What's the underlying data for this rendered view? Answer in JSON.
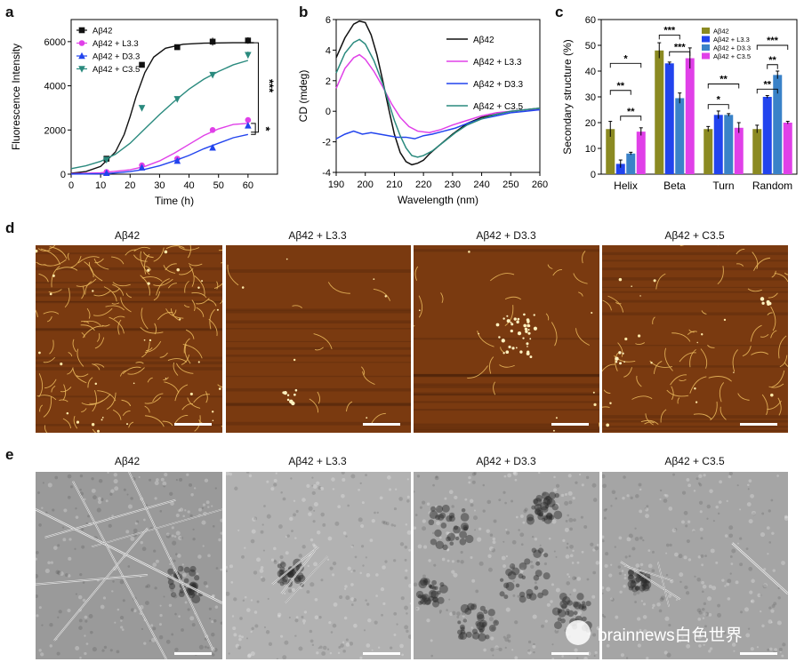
{
  "panels": {
    "a": "a",
    "b": "b",
    "c": "c",
    "d": "d",
    "e": "e"
  },
  "sample_labels": [
    "Aβ42",
    "Aβ42 + L3.3",
    "Aβ42 + D3.3",
    "Aβ42 + C3.5"
  ],
  "colors": {
    "ab42": "#111111",
    "l33": "#e040e8",
    "d33": "#2244ee",
    "c35": "#2a8a7e",
    "olive": "#8b8a22",
    "afm": "#7a3a10"
  },
  "watermark": "brainnews白色世界",
  "chart_data": [
    {
      "id": "a",
      "type": "scatter",
      "xlabel": "Time (h)",
      "ylabel": "Fluorescence Intensity",
      "xlim": [
        0,
        70
      ],
      "ylim": [
        0,
        7000
      ],
      "xticks": [
        0,
        10,
        20,
        30,
        40,
        50,
        60
      ],
      "yticks": [
        0,
        2000,
        4000,
        6000
      ],
      "series": [
        {
          "name": "Aβ42",
          "color": "#111111",
          "marker": "square",
          "x": [
            12,
            24,
            36,
            48,
            60
          ],
          "y": [
            700,
            4950,
            5750,
            6000,
            6050
          ],
          "err": [
            0,
            80,
            120,
            180,
            150
          ],
          "fit": [
            [
              0,
              40
            ],
            [
              5,
              120
            ],
            [
              10,
              350
            ],
            [
              15,
              1000
            ],
            [
              18,
              1800
            ],
            [
              20,
              2600
            ],
            [
              22,
              3500
            ],
            [
              25,
              4600
            ],
            [
              28,
              5300
            ],
            [
              32,
              5700
            ],
            [
              38,
              5880
            ],
            [
              45,
              5930
            ],
            [
              55,
              5950
            ],
            [
              62,
              5950
            ]
          ]
        },
        {
          "name": "Aβ42 + L3.3",
          "color": "#e040e8",
          "marker": "circle",
          "x": [
            12,
            24,
            36,
            48,
            60
          ],
          "y": [
            100,
            400,
            700,
            2000,
            2450
          ],
          "err": [
            0,
            60,
            80,
            100,
            100
          ],
          "fit": [
            [
              0,
              20
            ],
            [
              10,
              60
            ],
            [
              20,
              200
            ],
            [
              25,
              350
            ],
            [
              30,
              600
            ],
            [
              35,
              950
            ],
            [
              40,
              1350
            ],
            [
              45,
              1750
            ],
            [
              50,
              2050
            ],
            [
              55,
              2250
            ],
            [
              60,
              2300
            ]
          ]
        },
        {
          "name": "Aβ42 + D3.3",
          "color": "#2244ee",
          "marker": "triangle-up",
          "x": [
            12,
            24,
            36,
            48,
            60
          ],
          "y": [
            50,
            300,
            600,
            1200,
            2200
          ],
          "err": [
            0,
            40,
            60,
            80,
            100
          ],
          "fit": [
            [
              0,
              5
            ],
            [
              12,
              20
            ],
            [
              20,
              120
            ],
            [
              25,
              220
            ],
            [
              30,
              380
            ],
            [
              35,
              600
            ],
            [
              40,
              850
            ],
            [
              45,
              1150
            ],
            [
              50,
              1400
            ],
            [
              55,
              1650
            ],
            [
              60,
              1800
            ]
          ]
        },
        {
          "name": "Aβ42 + C3.5",
          "color": "#2a8a7e",
          "marker": "triangle-down",
          "x": [
            12,
            24,
            36,
            48,
            60
          ],
          "y": [
            650,
            3000,
            3400,
            4500,
            5400
          ],
          "err": [
            0,
            80,
            100,
            120,
            150
          ],
          "fit": [
            [
              0,
              250
            ],
            [
              5,
              380
            ],
            [
              10,
              580
            ],
            [
              15,
              900
            ],
            [
              20,
              1400
            ],
            [
              25,
              2050
            ],
            [
              30,
              2700
            ],
            [
              35,
              3300
            ],
            [
              40,
              3850
            ],
            [
              45,
              4300
            ],
            [
              50,
              4650
            ],
            [
              55,
              4950
            ],
            [
              60,
              5150
            ]
          ]
        }
      ],
      "annotations": [
        "***",
        "*"
      ]
    },
    {
      "id": "b",
      "type": "line",
      "xlabel": "Wavelength (nm)",
      "ylabel": "CD (mdeg)",
      "xlim": [
        190,
        260
      ],
      "ylim": [
        -4,
        6
      ],
      "xticks": [
        190,
        200,
        210,
        220,
        230,
        240,
        250,
        260
      ],
      "yticks": [
        -4,
        -2,
        0,
        2,
        4,
        6
      ],
      "series": [
        {
          "name": "Aβ42",
          "color": "#111111",
          "points": [
            [
              190,
              3.5
            ],
            [
              193,
              4.8
            ],
            [
              196,
              5.7
            ],
            [
              198,
              5.9
            ],
            [
              200,
              5.8
            ],
            [
              202,
              5.0
            ],
            [
              204,
              3.7
            ],
            [
              206,
              2.0
            ],
            [
              208,
              0.2
            ],
            [
              210,
              -1.5
            ],
            [
              212,
              -2.7
            ],
            [
              214,
              -3.3
            ],
            [
              216,
              -3.5
            ],
            [
              218,
              -3.4
            ],
            [
              220,
              -3.2
            ],
            [
              222,
              -2.8
            ],
            [
              225,
              -2.3
            ],
            [
              230,
              -1.5
            ],
            [
              235,
              -0.8
            ],
            [
              240,
              -0.4
            ],
            [
              245,
              -0.2
            ],
            [
              250,
              0.0
            ],
            [
              255,
              0.1
            ],
            [
              260,
              0.2
            ]
          ]
        },
        {
          "name": "Aβ42 + L3.3",
          "color": "#e040e8",
          "points": [
            [
              190,
              1.5
            ],
            [
              193,
              2.8
            ],
            [
              196,
              3.5
            ],
            [
              198,
              3.7
            ],
            [
              200,
              3.4
            ],
            [
              203,
              2.6
            ],
            [
              206,
              1.6
            ],
            [
              209,
              0.5
            ],
            [
              212,
              -0.4
            ],
            [
              215,
              -1.0
            ],
            [
              218,
              -1.3
            ],
            [
              222,
              -1.4
            ],
            [
              226,
              -1.2
            ],
            [
              230,
              -0.9
            ],
            [
              235,
              -0.6
            ],
            [
              240,
              -0.3
            ],
            [
              245,
              -0.1
            ],
            [
              250,
              0.0
            ],
            [
              255,
              0.1
            ],
            [
              260,
              0.1
            ]
          ]
        },
        {
          "name": "Aβ42 + D3.3",
          "color": "#2244ee",
          "points": [
            [
              190,
              -1.8
            ],
            [
              193,
              -1.5
            ],
            [
              196,
              -1.3
            ],
            [
              199,
              -1.5
            ],
            [
              202,
              -1.4
            ],
            [
              205,
              -1.5
            ],
            [
              208,
              -1.6
            ],
            [
              211,
              -1.7
            ],
            [
              214,
              -1.7
            ],
            [
              217,
              -1.8
            ],
            [
              220,
              -1.6
            ],
            [
              223,
              -1.5
            ],
            [
              227,
              -1.3
            ],
            [
              231,
              -1.1
            ],
            [
              235,
              -0.8
            ],
            [
              240,
              -0.5
            ],
            [
              245,
              -0.3
            ],
            [
              250,
              -0.1
            ],
            [
              255,
              0.0
            ],
            [
              260,
              0.1
            ]
          ]
        },
        {
          "name": "Aβ42 + C3.5",
          "color": "#2a8a7e",
          "points": [
            [
              190,
              2.5
            ],
            [
              193,
              3.8
            ],
            [
              196,
              4.5
            ],
            [
              198,
              4.7
            ],
            [
              200,
              4.4
            ],
            [
              203,
              3.3
            ],
            [
              206,
              1.8
            ],
            [
              208,
              0.6
            ],
            [
              210,
              -0.6
            ],
            [
              212,
              -1.6
            ],
            [
              214,
              -2.4
            ],
            [
              216,
              -2.9
            ],
            [
              218,
              -3.0
            ],
            [
              220,
              -2.9
            ],
            [
              223,
              -2.6
            ],
            [
              227,
              -2.0
            ],
            [
              231,
              -1.4
            ],
            [
              235,
              -0.9
            ],
            [
              240,
              -0.5
            ],
            [
              245,
              -0.2
            ],
            [
              250,
              0.0
            ],
            [
              255,
              0.1
            ],
            [
              260,
              0.2
            ]
          ]
        }
      ]
    },
    {
      "id": "c",
      "type": "bar",
      "xlabel": "",
      "ylabel": "Secondary structure (%)",
      "ylim": [
        0,
        60
      ],
      "yticks": [
        0,
        10,
        20,
        30,
        40,
        50,
        60
      ],
      "categories": [
        "Helix",
        "Beta",
        "Turn",
        "Random"
      ],
      "series": [
        {
          "name": "Aβ42",
          "color": "#8b8a22",
          "values": [
            17.5,
            48,
            17.5,
            17.5
          ],
          "err": [
            3,
            3,
            1,
            1.5
          ]
        },
        {
          "name": "Aβ42 + L3.3",
          "color": "#2244ee",
          "values": [
            4,
            43,
            23,
            30
          ],
          "err": [
            1.5,
            0.5,
            1.5,
            0.5
          ]
        },
        {
          "name": "Aβ42 + D3.3",
          "color": "#3a82c8",
          "values": [
            8,
            29.5,
            23,
            38.5
          ],
          "err": [
            0.5,
            2,
            0.5,
            1.5
          ]
        },
        {
          "name": "Aβ42 + C3.5",
          "color": "#e040e8",
          "values": [
            16.5,
            45,
            18,
            20
          ],
          "err": [
            1.5,
            4,
            2,
            0.5
          ]
        }
      ],
      "annotations": [
        "*",
        "**",
        "**",
        "***",
        "***",
        "*",
        "**",
        "***",
        "**",
        "**"
      ]
    }
  ]
}
